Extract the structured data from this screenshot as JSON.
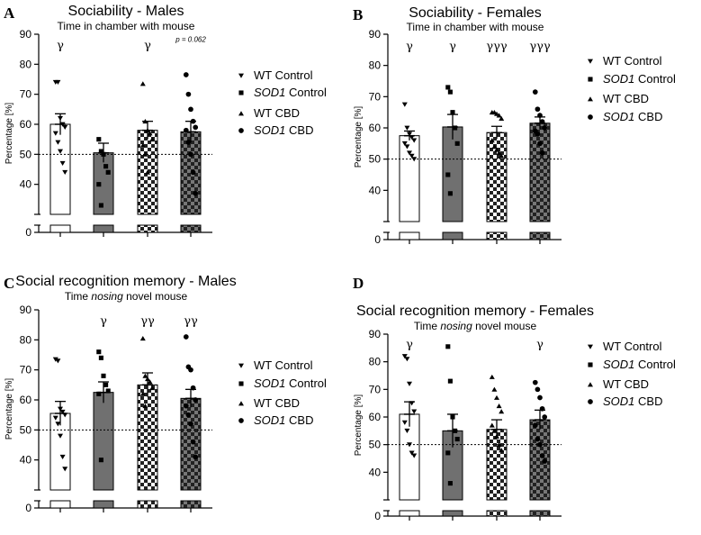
{
  "legend": [
    {
      "label": "WT Control",
      "sym": "tri-down"
    },
    {
      "label": "SOD1 Control",
      "sym": "square",
      "italic_prefix": "SOD1"
    },
    {
      "label": "WT CBD",
      "sym": "tri-up"
    },
    {
      "label": "SOD1 CBD",
      "sym": "circle",
      "italic_prefix": "SOD1"
    }
  ],
  "chart_data": [
    {
      "panel": "A",
      "type": "bar",
      "title": "Sociability - Males",
      "subtitle": "Time in chamber with mouse",
      "ylabel": "Percentage [%]",
      "yticks": [
        40,
        50,
        60,
        70,
        80,
        90
      ],
      "ylim": [
        30,
        90
      ],
      "chance": 50,
      "categories": [
        "WT Control",
        "SOD1 Control",
        "WT CBD",
        "SOD1 CBD"
      ],
      "means": [
        60,
        50.5,
        58,
        57.5
      ],
      "sem": [
        3.5,
        3.2,
        3,
        3.5
      ],
      "points": [
        [
          74,
          74,
          62,
          60,
          59,
          57,
          54,
          51,
          47,
          44
        ],
        [
          55,
          51,
          50,
          46,
          44,
          40,
          33
        ],
        [
          73.5,
          61,
          58,
          57,
          55,
          53,
          50,
          44
        ],
        [
          76.5,
          70,
          65,
          61,
          59,
          58,
          54,
          50,
          44,
          37
        ]
      ],
      "annotations": [
        "γ",
        "",
        "γ",
        "p = 0.062"
      ]
    },
    {
      "panel": "B",
      "type": "bar",
      "title": "Sociability - Females",
      "subtitle": "Time in chamber with mouse",
      "ylabel": "Percentage [%]",
      "yticks": [
        40,
        50,
        60,
        70,
        80,
        90
      ],
      "ylim": [
        30,
        90
      ],
      "chance": 50,
      "categories": [
        "WT Control",
        "SOD1 Control",
        "WT CBD",
        "SOD1 CBD"
      ],
      "means": [
        57.5,
        60.3,
        58.5,
        61.5
      ],
      "sem": [
        1.5,
        4,
        2,
        2
      ],
      "points": [
        [
          67.5,
          60,
          58,
          57,
          56,
          55,
          54,
          52,
          51,
          50
        ],
        [
          73,
          71.5,
          65,
          60,
          55,
          45,
          39
        ],
        [
          65,
          65,
          64.5,
          64,
          63,
          56,
          54,
          53,
          52,
          51
        ],
        [
          71.5,
          66,
          64,
          62,
          60,
          59,
          58,
          55,
          52
        ]
      ],
      "annotations": [
        "γ",
        "γ",
        "γγγ",
        "γγγ"
      ]
    },
    {
      "panel": "C",
      "type": "bar",
      "title": "Social recognition memory - Males",
      "subtitle_parts": [
        "Time ",
        "nosing",
        " novel mouse"
      ],
      "ylabel": "Percentage [%]",
      "yticks": [
        40,
        50,
        60,
        70,
        80,
        90
      ],
      "ylim": [
        30,
        90
      ],
      "chance": 50,
      "categories": [
        "WT Control",
        "SOD1 Control",
        "WT CBD",
        "SOD1 CBD"
      ],
      "means": [
        55.5,
        62.5,
        65,
        60.5
      ],
      "sem": [
        4,
        3.5,
        4,
        3
      ],
      "points": [
        [
          73.5,
          73,
          57,
          56,
          55,
          54,
          52,
          48,
          41,
          37
        ],
        [
          76,
          74,
          68,
          65,
          63,
          62,
          40
        ],
        [
          80.5,
          68,
          67,
          66,
          64,
          62,
          58
        ],
        [
          81,
          71,
          70,
          64,
          60,
          58,
          55,
          52,
          46,
          41
        ]
      ],
      "annotations": [
        "",
        "γ",
        "γγ",
        "γγ"
      ]
    },
    {
      "panel": "D",
      "type": "bar",
      "title": "Social recognition memory - Females",
      "subtitle_parts": [
        "Time ",
        "nosing",
        " novel mouse"
      ],
      "ylabel": "Percentage [%]",
      "yticks": [
        40,
        50,
        60,
        70,
        80,
        90
      ],
      "ylim": [
        30,
        90
      ],
      "chance": 50,
      "categories": [
        "WT Control",
        "SOD1 Control",
        "WT CBD",
        "SOD1 CBD"
      ],
      "means": [
        61,
        55,
        55.5,
        59
      ],
      "sem": [
        4.5,
        6,
        3.5,
        3.5
      ],
      "points": [
        [
          82,
          81,
          72,
          65,
          62,
          58,
          55,
          50,
          47,
          46
        ],
        [
          85.5,
          73,
          60,
          55,
          52,
          47,
          36
        ],
        [
          74.5,
          70,
          67,
          64,
          62,
          57,
          55,
          53,
          50,
          48
        ],
        [
          72.5,
          70,
          67,
          63,
          60,
          57,
          52,
          50,
          46,
          44
        ]
      ],
      "annotations": [
        "γ",
        "",
        "",
        "γ"
      ]
    }
  ]
}
